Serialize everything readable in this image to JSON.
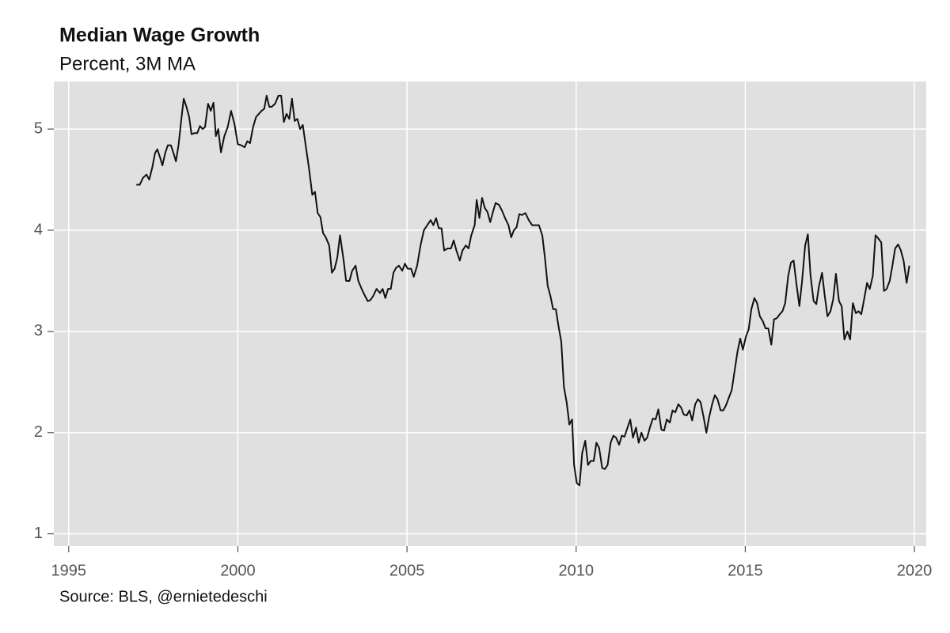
{
  "chart_data": {
    "type": "line",
    "title": "Median Wage Growth",
    "subtitle": "Percent, 3M MA",
    "source": "Source: BLS, @ernietedeschi",
    "color": "#111111",
    "grid": true,
    "xlim": [
      1994.56,
      2020.35
    ],
    "xticks": [
      1995,
      2000,
      2005,
      2010,
      2015,
      2020
    ],
    "ylim": [
      0.88,
      5.47
    ],
    "yticks": [
      1,
      2,
      3,
      4,
      5
    ],
    "x": [
      1997.0,
      1997.1,
      1997.2,
      1997.3,
      1997.38,
      1997.47,
      1997.55,
      1997.62,
      1997.7,
      1997.77,
      1997.85,
      1997.93,
      1998.02,
      1998.1,
      1998.17,
      1998.25,
      1998.33,
      1998.4,
      1998.48,
      1998.56,
      1998.63,
      1998.72,
      1998.8,
      1998.88,
      1998.96,
      1999.03,
      1999.12,
      1999.2,
      1999.28,
      1999.35,
      1999.42,
      1999.5,
      1999.6,
      1999.7,
      1999.8,
      1999.9,
      2000.0,
      2000.1,
      2000.2,
      2000.28,
      2000.36,
      2000.45,
      2000.54,
      2000.62,
      2000.7,
      2000.78,
      2000.85,
      2000.93,
      2001.0,
      2001.1,
      2001.2,
      2001.28,
      2001.36,
      2001.44,
      2001.52,
      2001.6,
      2001.68,
      2001.76,
      2001.84,
      2001.92,
      2002.0,
      2002.1,
      2002.2,
      2002.28,
      2002.36,
      2002.44,
      2002.52,
      2002.6,
      2002.7,
      2002.78,
      2002.86,
      2002.94,
      2003.02,
      2003.12,
      2003.2,
      2003.3,
      2003.38,
      2003.48,
      2003.56,
      2003.66,
      2003.76,
      2003.84,
      2003.92,
      2004.0,
      2004.1,
      2004.2,
      2004.28,
      2004.36,
      2004.44,
      2004.52,
      2004.6,
      2004.68,
      2004.76,
      2004.86,
      2004.94,
      2005.02,
      2005.12,
      2005.2,
      2005.3,
      2005.4,
      2005.5,
      2005.6,
      2005.7,
      2005.78,
      2005.86,
      2005.94,
      2006.02,
      2006.1,
      2006.2,
      2006.3,
      2006.38,
      2006.46,
      2006.56,
      2006.64,
      2006.74,
      2006.82,
      2006.9,
      2007.0,
      2007.06,
      2007.14,
      2007.22,
      2007.3,
      2007.38,
      2007.46,
      2007.54,
      2007.62,
      2007.72,
      2007.8,
      2007.9,
      2008.0,
      2008.08,
      2008.16,
      2008.24,
      2008.32,
      2008.4,
      2008.5,
      2008.6,
      2008.7,
      2008.8,
      2008.9,
      2009.0,
      2009.08,
      2009.16,
      2009.24,
      2009.32,
      2009.4,
      2009.48,
      2009.56,
      2009.64,
      2009.72,
      2009.8,
      2009.88,
      2009.94,
      2010.02,
      2010.1,
      2010.18,
      2010.27,
      2010.35,
      2010.43,
      2010.52,
      2010.6,
      2010.68,
      2010.77,
      2010.85,
      2010.93,
      2011.02,
      2011.1,
      2011.18,
      2011.27,
      2011.35,
      2011.43,
      2011.52,
      2011.6,
      2011.68,
      2011.77,
      2011.85,
      2011.93,
      2012.02,
      2012.1,
      2012.18,
      2012.27,
      2012.35,
      2012.43,
      2012.52,
      2012.6,
      2012.68,
      2012.77,
      2012.85,
      2012.93,
      2013.02,
      2013.1,
      2013.18,
      2013.27,
      2013.35,
      2013.43,
      2013.52,
      2013.6,
      2013.68,
      2013.77,
      2013.85,
      2013.93,
      2014.02,
      2014.1,
      2014.18,
      2014.27,
      2014.35,
      2014.43,
      2014.52,
      2014.6,
      2014.68,
      2014.77,
      2014.85,
      2014.93,
      2015.02,
      2015.1,
      2015.18,
      2015.27,
      2015.35,
      2015.43,
      2015.52,
      2015.6,
      2015.68,
      2015.77,
      2015.85,
      2015.93,
      2016.02,
      2016.1,
      2016.18,
      2016.27,
      2016.35,
      2016.43,
      2016.52,
      2016.6,
      2016.68,
      2016.77,
      2016.85,
      2016.93,
      2017.02,
      2017.1,
      2017.18,
      2017.27,
      2017.35,
      2017.43,
      2017.52,
      2017.6,
      2017.68,
      2017.77,
      2017.85,
      2017.93,
      2018.02,
      2018.1,
      2018.18,
      2018.27,
      2018.35,
      2018.43,
      2018.52,
      2018.6,
      2018.68,
      2018.77,
      2018.85,
      2018.93,
      2019.02,
      2019.1,
      2019.18,
      2019.27,
      2019.35,
      2019.43,
      2019.52,
      2019.6,
      2019.68,
      2019.77,
      2019.85
    ],
    "values": [
      4.45,
      4.45,
      4.52,
      4.55,
      4.5,
      4.62,
      4.76,
      4.8,
      4.72,
      4.64,
      4.76,
      4.84,
      4.84,
      4.76,
      4.68,
      4.85,
      5.1,
      5.3,
      5.22,
      5.12,
      4.95,
      4.96,
      4.96,
      5.03,
      5.0,
      5.02,
      5.25,
      5.18,
      5.26,
      4.93,
      5.0,
      4.77,
      4.93,
      5.02,
      5.18,
      5.05,
      4.85,
      4.84,
      4.82,
      4.88,
      4.86,
      5.02,
      5.12,
      5.15,
      5.18,
      5.2,
      5.33,
      5.22,
      5.22,
      5.25,
      5.33,
      5.33,
      5.07,
      5.15,
      5.1,
      5.3,
      5.08,
      5.1,
      5.0,
      5.04,
      4.85,
      4.62,
      4.35,
      4.38,
      4.17,
      4.13,
      3.97,
      3.93,
      3.85,
      3.58,
      3.62,
      3.73,
      3.95,
      3.72,
      3.5,
      3.5,
      3.6,
      3.65,
      3.5,
      3.42,
      3.35,
      3.3,
      3.31,
      3.35,
      3.42,
      3.38,
      3.42,
      3.33,
      3.42,
      3.42,
      3.58,
      3.63,
      3.65,
      3.6,
      3.67,
      3.62,
      3.62,
      3.54,
      3.65,
      3.85,
      4.0,
      4.05,
      4.1,
      4.05,
      4.12,
      4.02,
      4.02,
      3.8,
      3.82,
      3.82,
      3.9,
      3.8,
      3.7,
      3.8,
      3.85,
      3.82,
      3.95,
      4.05,
      4.3,
      4.12,
      4.32,
      4.22,
      4.18,
      4.08,
      4.18,
      4.27,
      4.25,
      4.2,
      4.12,
      4.05,
      3.93,
      4.0,
      4.03,
      4.16,
      4.15,
      4.17,
      4.1,
      4.05,
      4.05,
      4.05,
      3.95,
      3.72,
      3.45,
      3.35,
      3.22,
      3.22,
      3.05,
      2.9,
      2.45,
      2.3,
      2.08,
      2.13,
      1.68,
      1.5,
      1.48,
      1.8,
      1.92,
      1.68,
      1.72,
      1.72,
      1.9,
      1.85,
      1.65,
      1.64,
      1.68,
      1.9,
      1.97,
      1.95,
      1.88,
      1.97,
      1.96,
      2.05,
      2.13,
      1.95,
      2.05,
      1.9,
      2.0,
      1.92,
      1.95,
      2.05,
      2.14,
      2.13,
      2.23,
      2.03,
      2.02,
      2.13,
      2.1,
      2.22,
      2.2,
      2.28,
      2.25,
      2.18,
      2.17,
      2.22,
      2.12,
      2.28,
      2.33,
      2.3,
      2.15,
      2.0,
      2.15,
      2.28,
      2.37,
      2.33,
      2.22,
      2.22,
      2.27,
      2.35,
      2.42,
      2.6,
      2.8,
      2.93,
      2.82,
      2.95,
      3.02,
      3.22,
      3.33,
      3.28,
      3.15,
      3.1,
      3.03,
      3.03,
      2.87,
      3.12,
      3.13,
      3.17,
      3.2,
      3.28,
      3.55,
      3.68,
      3.7,
      3.45,
      3.25,
      3.5,
      3.85,
      3.96,
      3.55,
      3.3,
      3.27,
      3.45,
      3.58,
      3.35,
      3.15,
      3.2,
      3.32,
      3.57,
      3.3,
      3.25,
      2.92,
      3.0,
      2.92,
      3.28,
      3.18,
      3.2,
      3.17,
      3.33,
      3.48,
      3.42,
      3.55,
      3.95,
      3.92,
      3.88,
      3.4,
      3.42,
      3.5,
      3.65,
      3.82,
      3.86,
      3.8,
      3.7,
      3.48,
      3.65
    ]
  }
}
